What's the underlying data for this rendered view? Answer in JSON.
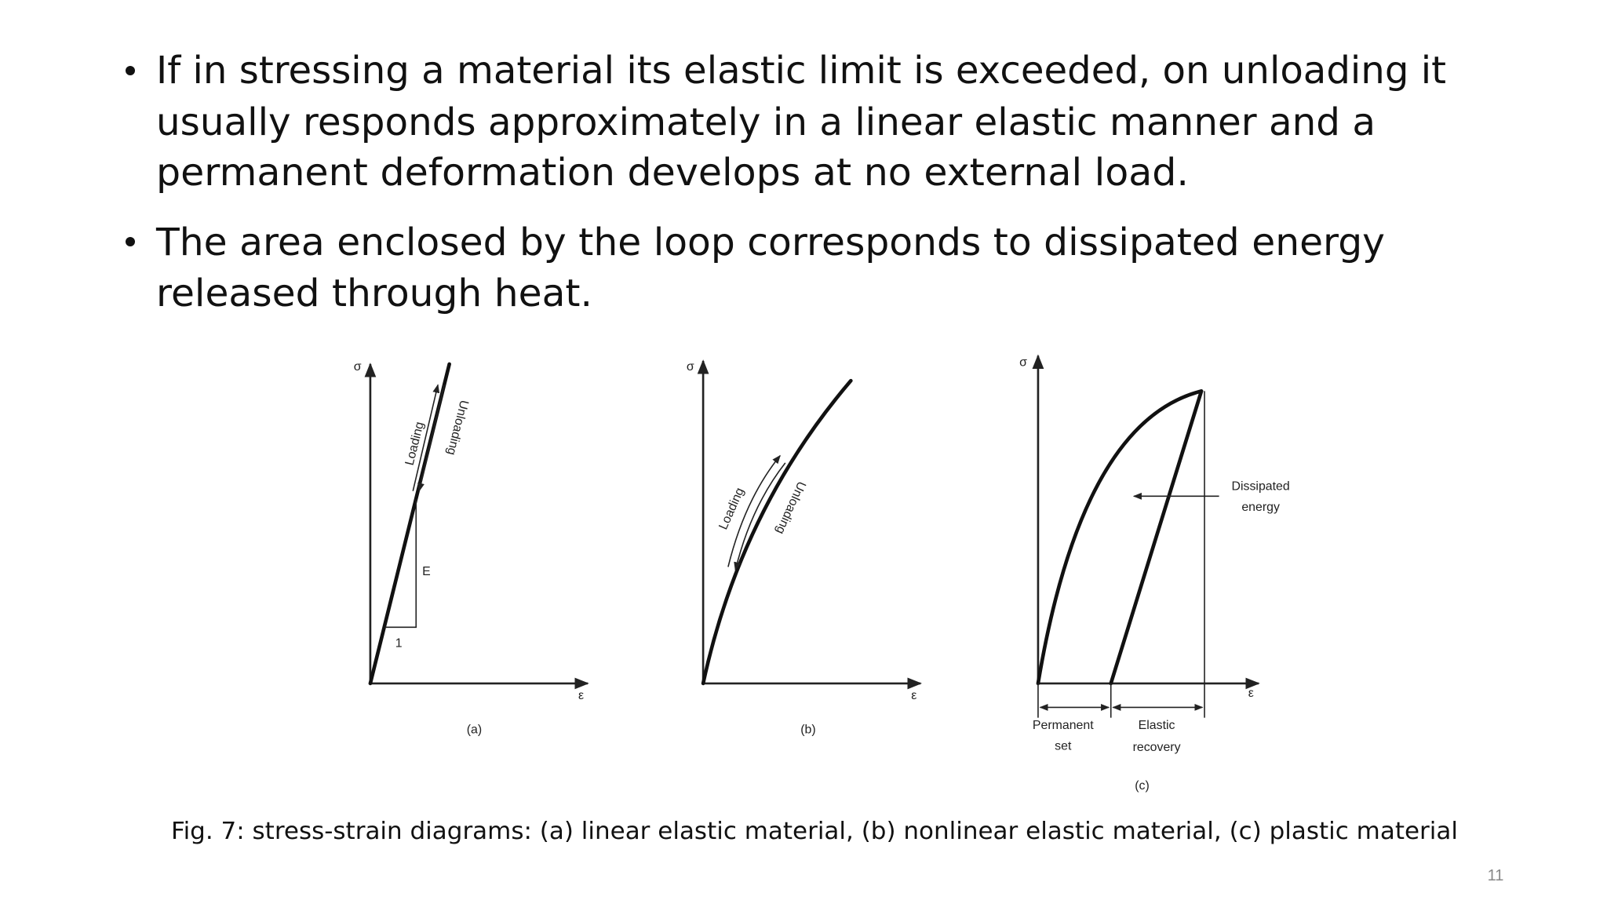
{
  "bullets": [
    {
      "lines": [
        "If in stressing a material its elastic limit is exceeded, on unloading it",
        "usually responds approximately in a linear elastic manner and a",
        "permanent deformation develops at no external load."
      ]
    },
    {
      "lines": [
        "The area enclosed by the loop corresponds to dissipated energy",
        "released through heat."
      ]
    }
  ],
  "figure": {
    "panels": [
      {
        "label": "(a)",
        "y_axis": "σ",
        "x_axis": "ε",
        "loading": "Loading",
        "unloading": "Unloading",
        "slope": "E",
        "run": "1"
      },
      {
        "label": "(b)",
        "y_axis": "σ",
        "x_axis": "ε",
        "loading": "Loading",
        "unloading": "Unloading"
      },
      {
        "label": "(c)",
        "y_axis": "σ",
        "x_axis": "ε",
        "dissipated": [
          "Dissipated",
          "energy"
        ],
        "permanent": [
          "Permanent",
          "set"
        ],
        "recovery": [
          "Elastic",
          "recovery"
        ]
      }
    ]
  },
  "caption": "Fig. 7: stress-strain diagrams: (a) linear elastic material, (b) nonlinear elastic material, (c) plastic material",
  "page_number": "11"
}
